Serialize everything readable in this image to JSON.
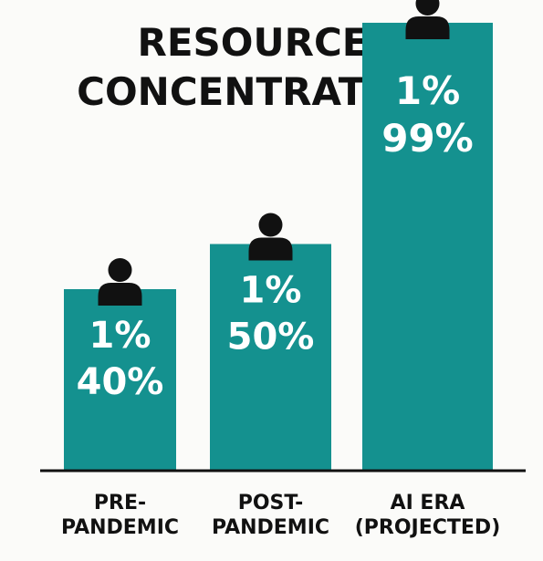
{
  "chart_data": {
    "type": "bar",
    "title_lines": [
      "RESOURCE",
      "CONCENTRATION"
    ],
    "categories": [
      [
        "PRE-",
        "PANDEMIC"
      ],
      [
        "POST-",
        "PANDEMIC"
      ],
      [
        "AI ERA",
        "(PROJECTED)"
      ]
    ],
    "group_labels": [
      "1%",
      "1%",
      "1%"
    ],
    "values": [
      40,
      50,
      99
    ],
    "value_labels": [
      "40%",
      "50%",
      "99%"
    ],
    "ylim": [
      0,
      100
    ],
    "grid": false,
    "legend": "none"
  },
  "colors": {
    "bar": "#14918f",
    "text": "#111111",
    "bar_text": "#ffffff",
    "icon": "#111111",
    "background": "#fbfbf9",
    "axis": "#111111"
  },
  "icons": {
    "person": "person-icon"
  }
}
